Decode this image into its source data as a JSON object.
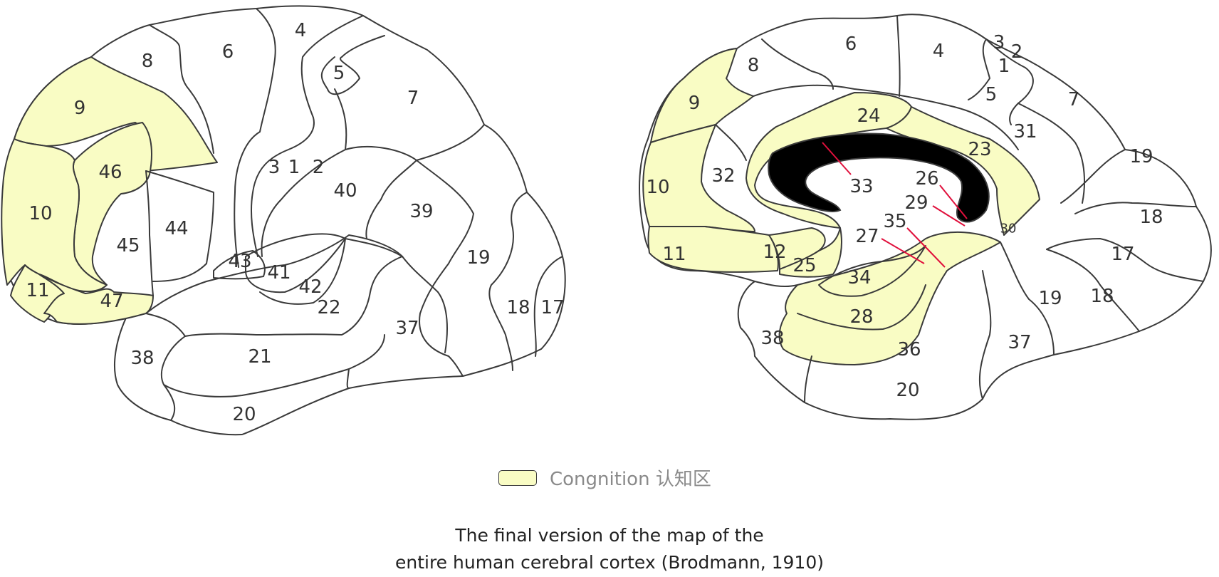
{
  "legend": {
    "swatch_color": "#f9fcc4",
    "label": "Congnition 认知区"
  },
  "caption": {
    "line1": "The final version of the map of the",
    "line2": "entire human cerebral cortex (Brodmann, 1910)"
  },
  "lateral_view": {
    "areas": [
      "9",
      "46",
      "10",
      "11",
      "47",
      "8",
      "6",
      "4",
      "5",
      "7",
      "3",
      "1",
      "2",
      "40",
      "39",
      "44",
      "45",
      "43",
      "41",
      "42",
      "22",
      "21",
      "20",
      "38",
      "37",
      "19",
      "18",
      "17"
    ],
    "cognition_areas": [
      "9",
      "46",
      "10",
      "11",
      "47"
    ]
  },
  "medial_view": {
    "areas": [
      "6",
      "4",
      "3",
      "2",
      "1",
      "5",
      "7",
      "8",
      "9",
      "24",
      "23",
      "31",
      "32",
      "10",
      "33",
      "26",
      "29",
      "30",
      "35",
      "27",
      "11",
      "12",
      "25",
      "34",
      "28",
      "36",
      "38",
      "20",
      "37",
      "19",
      "18",
      "17"
    ],
    "cognition_areas": [
      "9",
      "10",
      "11",
      "12",
      "25",
      "24",
      "23",
      "28",
      "36"
    ]
  }
}
